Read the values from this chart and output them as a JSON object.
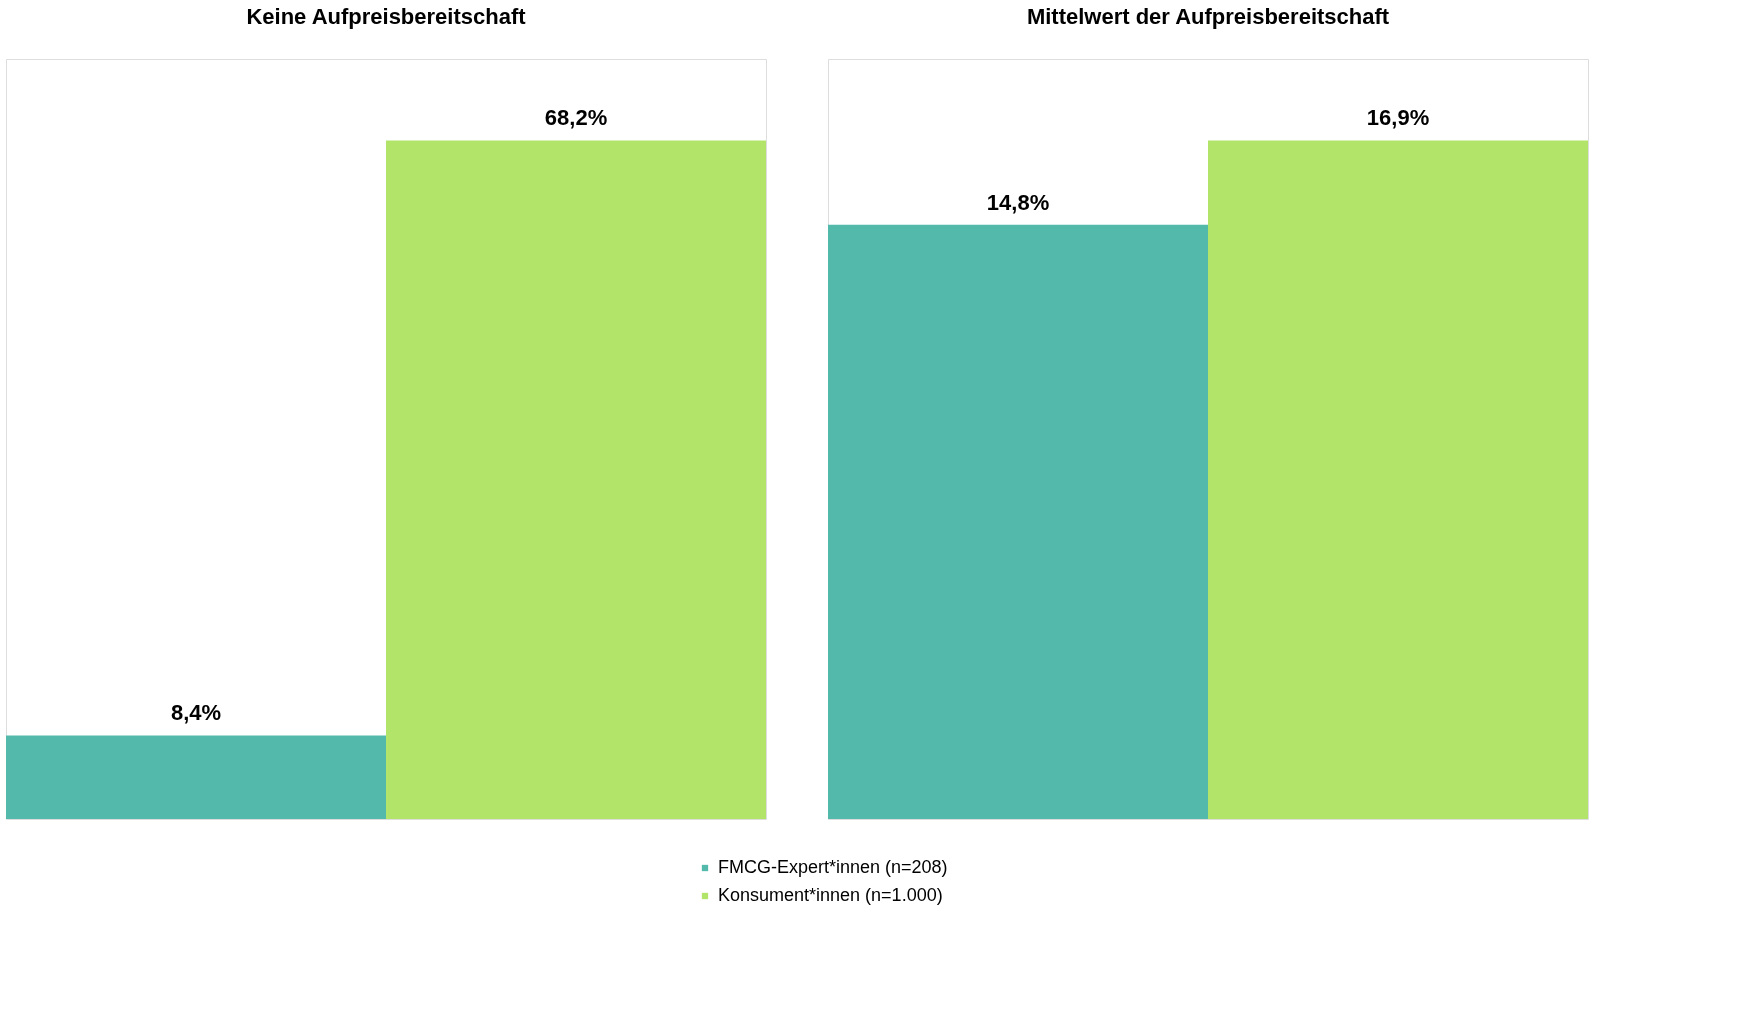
{
  "chart_data": [
    {
      "type": "bar",
      "title": "Keine Aufpreisbereitschaft",
      "categories": [
        null
      ],
      "legend": "bottom",
      "series": [
        {
          "name": "FMCG-Expert*innen (n=208)",
          "color": "#52b9ab",
          "values": [
            8.4
          ],
          "value_labels": [
            "8,4%"
          ]
        },
        {
          "name": "Konsument*innen (n=1.000)",
          "color": "#b2e46a",
          "values": [
            68.2
          ],
          "value_labels": [
            "68,2%"
          ]
        }
      ]
    },
    {
      "type": "bar",
      "title": "Mittelwert der Aufpreisbereitschaft",
      "categories": [
        null
      ],
      "legend": "bottom",
      "series": [
        {
          "name": "FMCG-Expert*innen (n=208)",
          "color": "#52b9ab",
          "values": [
            14.8
          ],
          "value_labels": [
            "14,8%"
          ]
        },
        {
          "name": "Konsument*innen (n=1.000)",
          "color": "#b2e46a",
          "values": [
            16.9
          ],
          "value_labels": [
            "16,9%"
          ]
        }
      ]
    }
  ]
}
